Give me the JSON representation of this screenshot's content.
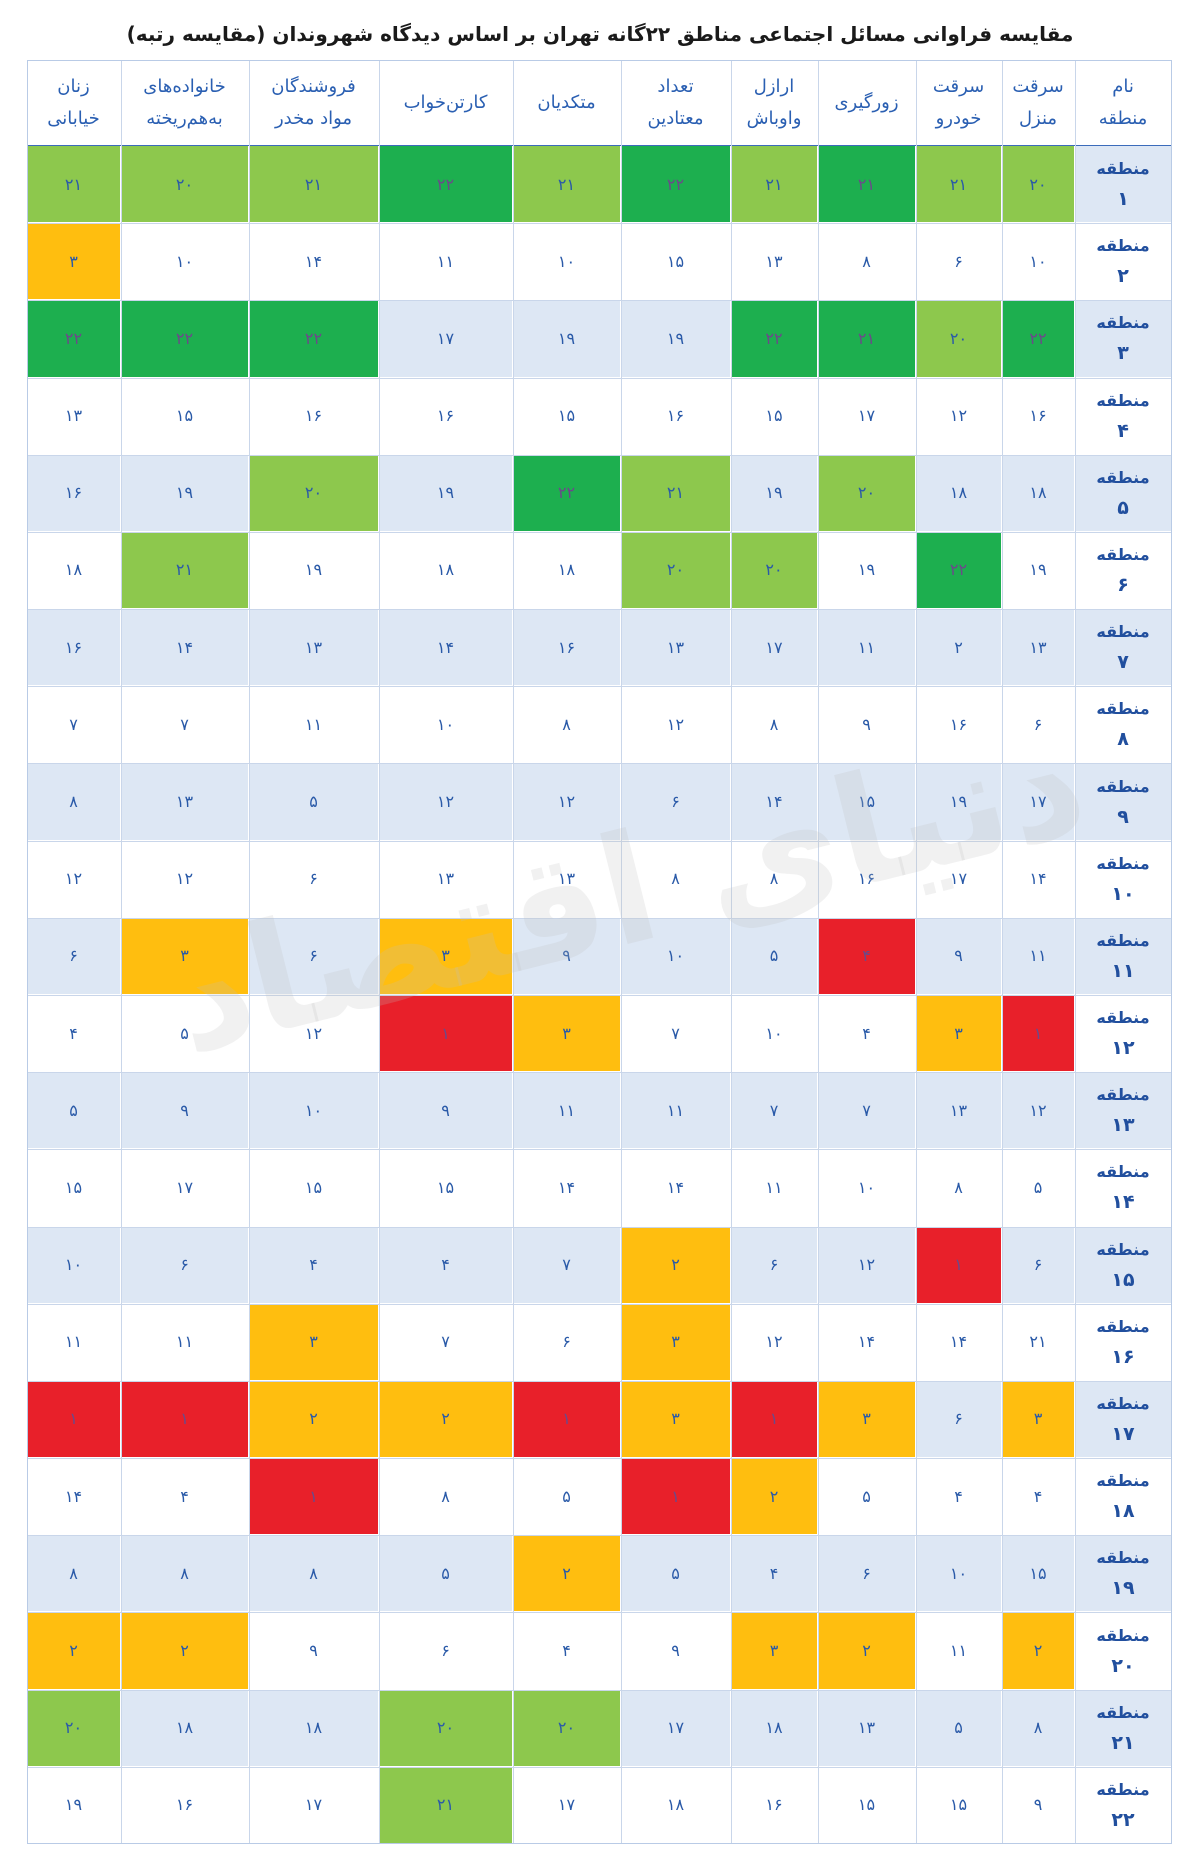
{
  "title": "مقایسه فراوانی مسائل اجتماعی مناطق ۲۲گانه تهران بر اساس دیدگاه شهروندان (مقایسه رتبه)",
  "watermark": "دنیای اقتصاد",
  "colors": {
    "dark_green": "#1daf4f",
    "light_green": "#8dc84d",
    "orange": "#ffbe0f",
    "red": "#e8202a",
    "row_light": "#dde7f4",
    "text_blue": "#2a5aa8"
  },
  "table": {
    "columns": [
      {
        "line1": "نام",
        "line2": "منطقه"
      },
      {
        "line1": "سرقت",
        "line2": "منزل"
      },
      {
        "line1": "سرقت",
        "line2": "خودرو"
      },
      {
        "line1": "زورگیری",
        "line2": ""
      },
      {
        "line1": "ارازل",
        "line2": "واوباش"
      },
      {
        "line1": "تعداد",
        "line2": "معتادین"
      },
      {
        "line1": "متکدیان",
        "line2": ""
      },
      {
        "line1": "کارتن‌خواب",
        "line2": ""
      },
      {
        "line1": "فروشندگان",
        "line2": "مواد مخدر"
      },
      {
        "line1": "خانواده‌های",
        "line2": "به‌هم‌ریخته"
      },
      {
        "line1": "زنان",
        "line2": "خیابانی"
      }
    ],
    "district_word": "منطقه",
    "rows": [
      {
        "num": "۱",
        "values": [
          "۲۰",
          "۲۱",
          "۲۱",
          "۲۱",
          "۲۲",
          "۲۱",
          "۲۲",
          "۲۱",
          "۲۰",
          "۲۱"
        ],
        "colors": [
          "lg",
          "lg",
          "dg",
          "lg",
          "dg",
          "lg",
          "dg",
          "lg",
          "lg",
          "lg"
        ]
      },
      {
        "num": "۲",
        "values": [
          "۱۰",
          "۶",
          "۸",
          "۱۳",
          "۱۵",
          "۱۰",
          "۱۱",
          "۱۴",
          "۱۰",
          "۳"
        ],
        "colors": [
          "",
          "",
          "",
          "",
          "",
          "",
          "",
          "",
          "",
          "or"
        ]
      },
      {
        "num": "۳",
        "values": [
          "۲۲",
          "۲۰",
          "۲۱",
          "۲۲",
          "۱۹",
          "۱۹",
          "۱۷",
          "۲۲",
          "۲۲",
          "۲۲"
        ],
        "colors": [
          "dg",
          "lg",
          "dg",
          "dg",
          "",
          "",
          "",
          "dg",
          "dg",
          "dg"
        ]
      },
      {
        "num": "۴",
        "values": [
          "۱۶",
          "۱۲",
          "۱۷",
          "۱۵",
          "۱۶",
          "۱۵",
          "۱۶",
          "۱۶",
          "۱۵",
          "۱۳"
        ],
        "colors": [
          "",
          "",
          "",
          "",
          "",
          "",
          "",
          "",
          "",
          ""
        ]
      },
      {
        "num": "۵",
        "values": [
          "۱۸",
          "۱۸",
          "۲۰",
          "۱۹",
          "۲۱",
          "۲۲",
          "۱۹",
          "۲۰",
          "۱۹",
          "۱۶"
        ],
        "colors": [
          "",
          "",
          "lg",
          "",
          "lg",
          "dg",
          "",
          "lg",
          "",
          ""
        ]
      },
      {
        "num": "۶",
        "values": [
          "۱۹",
          "۲۲",
          "۱۹",
          "۲۰",
          "۲۰",
          "۱۸",
          "۱۸",
          "۱۹",
          "۲۱",
          "۱۸"
        ],
        "colors": [
          "",
          "dg",
          "",
          "lg",
          "lg",
          "",
          "",
          "",
          "lg",
          ""
        ]
      },
      {
        "num": "۷",
        "values": [
          "۱۳",
          "۲",
          "۱۱",
          "۱۷",
          "۱۳",
          "۱۶",
          "۱۴",
          "۱۳",
          "۱۴",
          "۱۶"
        ],
        "colors": [
          "",
          "",
          "",
          "",
          "",
          "",
          "",
          "",
          "",
          ""
        ]
      },
      {
        "num": "۸",
        "values": [
          "۶",
          "۱۶",
          "۹",
          "۸",
          "۱۲",
          "۸",
          "۱۰",
          "۱۱",
          "۷",
          "۷"
        ],
        "colors": [
          "",
          "",
          "",
          "",
          "",
          "",
          "",
          "",
          "",
          ""
        ]
      },
      {
        "num": "۹",
        "values": [
          "۱۷",
          "۱۹",
          "۱۵",
          "۱۴",
          "۶",
          "۱۲",
          "۱۲",
          "۵",
          "۱۳",
          "۸"
        ],
        "colors": [
          "",
          "",
          "",
          "",
          "",
          "",
          "",
          "",
          "",
          ""
        ]
      },
      {
        "num": "۱۰",
        "values": [
          "۱۴",
          "۱۷",
          "۱۶",
          "۸",
          "۸",
          "۱۳",
          "۱۳",
          "۶",
          "۱۲",
          "۱۲"
        ],
        "colors": [
          "",
          "",
          "",
          "",
          "",
          "",
          "",
          "",
          "",
          ""
        ]
      },
      {
        "num": "۱۱",
        "values": [
          "۱۱",
          "۹",
          "۴",
          "۵",
          "۱۰",
          "۹",
          "۳",
          "۶",
          "۳",
          "۶"
        ],
        "colors": [
          "",
          "",
          "rd",
          "",
          "",
          "",
          "or",
          "",
          "or",
          ""
        ]
      },
      {
        "num": "۱۲",
        "values": [
          "۱",
          "۳",
          "۴",
          "۱۰",
          "۷",
          "۳",
          "۱",
          "۱۲",
          "۵",
          "۴"
        ],
        "colors": [
          "rd",
          "or",
          "",
          "",
          "",
          "or",
          "rd",
          "",
          "",
          ""
        ]
      },
      {
        "num": "۱۳",
        "values": [
          "۱۲",
          "۱۳",
          "۷",
          "۷",
          "۱۱",
          "۱۱",
          "۹",
          "۱۰",
          "۹",
          "۵"
        ],
        "colors": [
          "",
          "",
          "",
          "",
          "",
          "",
          "",
          "",
          "",
          ""
        ]
      },
      {
        "num": "۱۴",
        "values": [
          "۵",
          "۸",
          "۱۰",
          "۱۱",
          "۱۴",
          "۱۴",
          "۱۵",
          "۱۵",
          "۱۷",
          "۱۵"
        ],
        "colors": [
          "",
          "",
          "",
          "",
          "",
          "",
          "",
          "",
          "",
          ""
        ]
      },
      {
        "num": "۱۵",
        "values": [
          "۶",
          "۱",
          "۱۲",
          "۶",
          "۲",
          "۷",
          "۴",
          "۴",
          "۶",
          "۱۰"
        ],
        "colors": [
          "",
          "rd",
          "",
          "",
          "or",
          "",
          "",
          "",
          "",
          ""
        ]
      },
      {
        "num": "۱۶",
        "values": [
          "۲۱",
          "۱۴",
          "۱۴",
          "۱۲",
          "۳",
          "۶",
          "۷",
          "۳",
          "۱۱",
          "۱۱"
        ],
        "colors": [
          "",
          "",
          "",
          "",
          "or",
          "",
          "",
          "or",
          "",
          ""
        ]
      },
      {
        "num": "۱۷",
        "values": [
          "۳",
          "۶",
          "۳",
          "۱",
          "۳",
          "۱",
          "۲",
          "۲",
          "۱",
          "۱"
        ],
        "colors": [
          "or",
          "",
          "or",
          "rd",
          "or",
          "rd",
          "or",
          "or",
          "rd",
          "rd"
        ]
      },
      {
        "num": "۱۸",
        "values": [
          "۴",
          "۴",
          "۵",
          "۲",
          "۱",
          "۵",
          "۸",
          "۱",
          "۴",
          "۱۴"
        ],
        "colors": [
          "",
          "",
          "",
          "or",
          "rd",
          "",
          "",
          "rd",
          "",
          ""
        ]
      },
      {
        "num": "۱۹",
        "values": [
          "۱۵",
          "۱۰",
          "۶",
          "۴",
          "۵",
          "۲",
          "۵",
          "۸",
          "۸",
          "۸"
        ],
        "colors": [
          "",
          "",
          "",
          "",
          "",
          "or",
          "",
          "",
          "",
          ""
        ]
      },
      {
        "num": "۲۰",
        "values": [
          "۲",
          "۱۱",
          "۲",
          "۳",
          "۹",
          "۴",
          "۶",
          "۹",
          "۲",
          "۲"
        ],
        "colors": [
          "or",
          "",
          "or",
          "or",
          "",
          "",
          "",
          "",
          "or",
          "or"
        ]
      },
      {
        "num": "۲۱",
        "values": [
          "۸",
          "۵",
          "۱۳",
          "۱۸",
          "۱۷",
          "۲۰",
          "۲۰",
          "۱۸",
          "۱۸",
          "۲۰"
        ],
        "colors": [
          "",
          "",
          "",
          "",
          "",
          "lg",
          "lg",
          "",
          "",
          "lg"
        ]
      },
      {
        "num": "۲۲",
        "values": [
          "۹",
          "۱۵",
          "۱۵",
          "۱۶",
          "۱۸",
          "۱۷",
          "۲۱",
          "۱۷",
          "۱۶",
          "۱۹"
        ],
        "colors": [
          "",
          "",
          "",
          "",
          "",
          "",
          "lg",
          "",
          "",
          ""
        ]
      }
    ]
  }
}
